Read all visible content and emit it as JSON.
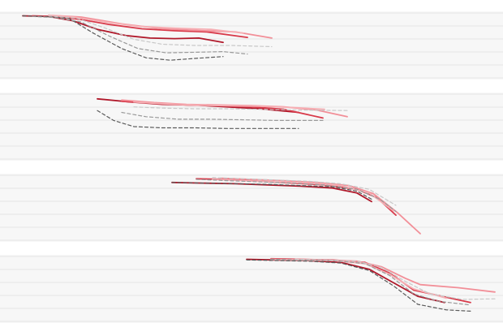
{
  "chart_data": {
    "type": "line",
    "x_range": [
      0,
      620
    ],
    "y_range": [
      0,
      100
    ],
    "grid": true,
    "colors": {
      "band": "#f7f7f7",
      "gridline": "#e6e6e6",
      "red_dark": "#b0182a",
      "red_mid": "#d83a4a",
      "red_light": "#f28f98",
      "red_pale": "#f6b0b5",
      "grey_dark": "#5a5a5a",
      "grey_mid": "#9a9a9a",
      "grey_light": "#c8c8c8"
    },
    "panels": [
      {
        "series": [
          {
            "style": "red_dark",
            "points": [
              [
                28,
                98
              ],
              [
                60,
                97
              ],
              [
                90,
                90
              ],
              [
                120,
                76
              ],
              [
                155,
                66
              ],
              [
                185,
                62
              ],
              [
                215,
                61
              ],
              [
                245,
                62
              ],
              [
                275,
                55
              ]
            ]
          },
          {
            "style": "red_mid",
            "points": [
              [
                40,
                98
              ],
              [
                70,
                97
              ],
              [
                100,
                92
              ],
              [
                135,
                84
              ],
              [
                175,
                77
              ],
              [
                215,
                74
              ],
              [
                255,
                72
              ],
              [
                305,
                63
              ]
            ]
          },
          {
            "style": "red_light",
            "points": [
              [
                60,
                99
              ],
              [
                100,
                96
              ],
              [
                150,
                85
              ],
              [
                200,
                77
              ],
              [
                250,
                74
              ],
              [
                290,
                72
              ],
              [
                335,
                62
              ]
            ]
          },
          {
            "style": "red_pale",
            "points": [
              [
                60,
                99
              ],
              [
                90,
                96
              ],
              [
                130,
                88
              ],
              [
                170,
                81
              ],
              [
                215,
                78
              ],
              [
                260,
                76
              ],
              [
                300,
                70
              ]
            ]
          },
          {
            "style": "grey_dark",
            "dashed": true,
            "points": [
              [
                28,
                98
              ],
              [
                55,
                97
              ],
              [
                85,
                94
              ],
              [
                115,
                70
              ],
              [
                150,
                45
              ],
              [
                180,
                30
              ],
              [
                210,
                26
              ],
              [
                240,
                29
              ],
              [
                275,
                32
              ]
            ]
          },
          {
            "style": "grey_mid",
            "dashed": true,
            "points": [
              [
                40,
                97
              ],
              [
                70,
                95
              ],
              [
                100,
                88
              ],
              [
                135,
                65
              ],
              [
                170,
                45
              ],
              [
                205,
                38
              ],
              [
                240,
                39
              ],
              [
                275,
                40
              ],
              [
                305,
                36
              ]
            ]
          },
          {
            "style": "grey_light",
            "dashed": true,
            "points": [
              [
                60,
                98
              ],
              [
                95,
                94
              ],
              [
                130,
                78
              ],
              [
                165,
                60
              ],
              [
                200,
                52
              ],
              [
                240,
                50
              ],
              [
                285,
                50
              ],
              [
                335,
                48
              ]
            ]
          }
        ]
      },
      {
        "series": [
          {
            "style": "red_dark",
            "points": [
              [
                120,
                95
              ],
              [
                160,
                90
              ],
              [
                200,
                86
              ],
              [
                240,
                85
              ],
              [
                280,
                82
              ],
              [
                320,
                79
              ],
              [
                368,
                73
              ]
            ]
          },
          {
            "style": "red_mid",
            "points": [
              [
                150,
                91
              ],
              [
                190,
                88
              ],
              [
                230,
                85
              ],
              [
                270,
                84
              ],
              [
                310,
                82
              ],
              [
                350,
                78
              ],
              [
                398,
                64
              ]
            ]
          },
          {
            "style": "red_light",
            "points": [
              [
                150,
                93
              ],
              [
                190,
                89
              ],
              [
                230,
                86
              ],
              [
                270,
                85
              ],
              [
                310,
                84
              ],
              [
                350,
                82
              ],
              [
                390,
                77
              ],
              [
                428,
                66
              ]
            ]
          },
          {
            "style": "red_pale",
            "points": [
              [
                165,
                90
              ],
              [
                200,
                87
              ],
              [
                240,
                85
              ],
              [
                280,
                84
              ],
              [
                320,
                83
              ],
              [
                360,
                81
              ],
              [
                400,
                78
              ]
            ]
          },
          {
            "style": "grey_dark",
            "dashed": true,
            "points": [
              [
                120,
                76
              ],
              [
                140,
                60
              ],
              [
                165,
                50
              ],
              [
                200,
                48
              ],
              [
                240,
                48
              ],
              [
                280,
                47
              ],
              [
                320,
                47
              ],
              [
                368,
                47
              ]
            ]
          },
          {
            "style": "grey_mid",
            "dashed": true,
            "points": [
              [
                150,
                73
              ],
              [
                180,
                66
              ],
              [
                220,
                62
              ],
              [
                260,
                62
              ],
              [
                300,
                61
              ],
              [
                340,
                60
              ],
              [
                398,
                60
              ]
            ]
          },
          {
            "style": "grey_light",
            "dashed": true,
            "points": [
              [
                165,
                82
              ],
              [
                200,
                80
              ],
              [
                240,
                79
              ],
              [
                280,
                79
              ],
              [
                320,
                78
              ],
              [
                360,
                77
              ],
              [
                428,
                76
              ]
            ]
          }
        ]
      },
      {
        "series": [
          {
            "style": "red_dark",
            "points": [
              [
                212,
                91
              ],
              [
                250,
                90
              ],
              [
                290,
                89
              ],
              [
                330,
                87
              ],
              [
                370,
                85
              ],
              [
                410,
                82
              ],
              [
                440,
                74
              ],
              [
                458,
                60
              ]
            ]
          },
          {
            "style": "red_mid",
            "points": [
              [
                242,
                97
              ],
              [
                280,
                96
              ],
              [
                320,
                93
              ],
              [
                360,
                90
              ],
              [
                400,
                87
              ],
              [
                440,
                80
              ],
              [
                465,
                66
              ],
              [
                488,
                38
              ]
            ]
          },
          {
            "style": "red_light",
            "points": [
              [
                272,
                98
              ],
              [
                310,
                96
              ],
              [
                350,
                94
              ],
              [
                390,
                91
              ],
              [
                430,
                86
              ],
              [
                460,
                73
              ],
              [
                490,
                42
              ],
              [
                518,
                8
              ]
            ]
          },
          {
            "style": "red_pale",
            "points": [
              [
                262,
                96
              ],
              [
                300,
                94
              ],
              [
                340,
                92
              ],
              [
                380,
                90
              ],
              [
                420,
                86
              ],
              [
                455,
                74
              ],
              [
                485,
                45
              ]
            ]
          },
          {
            "style": "grey_dark",
            "dashed": true,
            "points": [
              [
                212,
                91
              ],
              [
                250,
                90
              ],
              [
                290,
                89
              ],
              [
                330,
                88
              ],
              [
                370,
                86
              ],
              [
                410,
                84
              ],
              [
                440,
                77
              ],
              [
                458,
                64
              ]
            ]
          },
          {
            "style": "grey_mid",
            "dashed": true,
            "points": [
              [
                242,
                96
              ],
              [
                280,
                94
              ],
              [
                320,
                92
              ],
              [
                360,
                90
              ],
              [
                400,
                87
              ],
              [
                440,
                80
              ],
              [
                468,
                64
              ],
              [
                488,
                44
              ]
            ]
          },
          {
            "style": "grey_light",
            "dashed": true,
            "points": [
              [
                262,
                99
              ],
              [
                300,
                97
              ],
              [
                340,
                95
              ],
              [
                380,
                93
              ],
              [
                420,
                89
              ],
              [
                455,
                80
              ],
              [
                488,
                54
              ]
            ]
          }
        ]
      },
      {
        "series": [
          {
            "style": "red_dark",
            "points": [
              [
                304,
                98
              ],
              [
                340,
                97
              ],
              [
                380,
                96
              ],
              [
                420,
                93
              ],
              [
                455,
                82
              ],
              [
                485,
                60
              ],
              [
                515,
                38
              ],
              [
                548,
                28
              ]
            ]
          },
          {
            "style": "red_mid",
            "points": [
              [
                334,
                99
              ],
              [
                370,
                98
              ],
              [
                410,
                97
              ],
              [
                450,
                93
              ],
              [
                480,
                76
              ],
              [
                510,
                48
              ],
              [
                545,
                38
              ],
              [
                580,
                28
              ]
            ]
          },
          {
            "style": "red_light",
            "points": [
              [
                364,
                98
              ],
              [
                400,
                97
              ],
              [
                440,
                95
              ],
              [
                470,
                86
              ],
              [
                500,
                67
              ],
              [
                518,
                57
              ],
              [
                565,
                52
              ],
              [
                610,
                45
              ]
            ]
          },
          {
            "style": "red_pale",
            "points": [
              [
                334,
                98
              ],
              [
                370,
                97
              ],
              [
                410,
                96
              ],
              [
                450,
                91
              ],
              [
                480,
                74
              ],
              [
                510,
                50
              ],
              [
                550,
                35
              ]
            ]
          },
          {
            "style": "grey_dark",
            "dashed": true,
            "points": [
              [
                304,
                97
              ],
              [
                340,
                96
              ],
              [
                380,
                95
              ],
              [
                420,
                92
              ],
              [
                455,
                80
              ],
              [
                485,
                55
              ],
              [
                515,
                25
              ],
              [
                550,
                16
              ],
              [
                580,
                14
              ]
            ]
          },
          {
            "style": "grey_mid",
            "dashed": true,
            "points": [
              [
                334,
                98
              ],
              [
                370,
                97
              ],
              [
                410,
                96
              ],
              [
                450,
                91
              ],
              [
                480,
                72
              ],
              [
                510,
                42
              ],
              [
                540,
                30
              ],
              [
                580,
                24
              ]
            ]
          },
          {
            "style": "grey_light",
            "dashed": true,
            "points": [
              [
                364,
                98
              ],
              [
                400,
                97
              ],
              [
                440,
                95
              ],
              [
                470,
                85
              ],
              [
                500,
                62
              ],
              [
                530,
                42
              ],
              [
                570,
                33
              ],
              [
                610,
                34
              ]
            ]
          }
        ]
      }
    ]
  }
}
